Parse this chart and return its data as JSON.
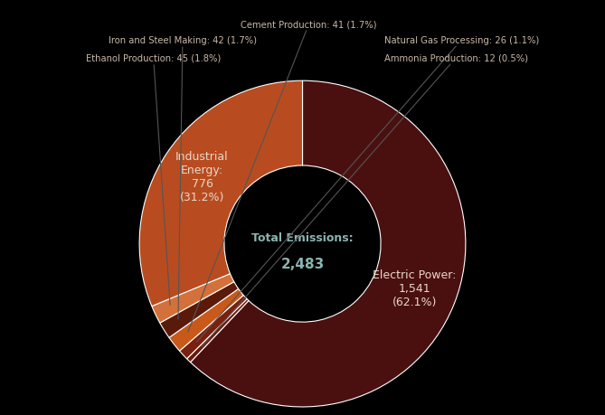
{
  "slices": [
    {
      "label": "Electric Power",
      "value": 1541,
      "pct": 62.1,
      "color": "#4a1010"
    },
    {
      "label": "Ammonia Production",
      "value": 12,
      "pct": 0.5,
      "color": "#6b1a0a"
    },
    {
      "label": "Natural Gas Processing",
      "value": 26,
      "pct": 1.1,
      "color": "#7a2010"
    },
    {
      "label": "Cement Production",
      "value": 41,
      "pct": 1.7,
      "color": "#c8591a"
    },
    {
      "label": "Iron and Steel Making",
      "value": 42,
      "pct": 1.7,
      "color": "#5a1a0a"
    },
    {
      "label": "Ethanol Production",
      "value": 45,
      "pct": 1.8,
      "color": "#d4703a"
    },
    {
      "label": "Industrial Energy",
      "value": 776,
      "pct": 31.2,
      "color": "#b84c20"
    }
  ],
  "total_text1": "Total Emissions:",
  "total_text2": "2,483",
  "background_color": "#000000",
  "center_text_color": "#8ab5b0",
  "wedge_edge_color": "#ffffff",
  "inner_label_color": "#e8d8c8",
  "ann_text_color": "#c8b8a8",
  "ann_line_color": "#555555",
  "ep_label": "Electric Power:\n1,541\n(62.1%)",
  "ie_label": "Industrial\nEnergy:\n776\n(31.2%)",
  "small_slices": [
    {
      "label": "Ethanol Production",
      "text": "Ethanol Production: 45 (1.8%)",
      "ha": "right"
    },
    {
      "label": "Iron and Steel Making",
      "text": "Iron and Steel Making: 42 (1.7%)",
      "ha": "right"
    },
    {
      "label": "Cement Production",
      "text": "Cement Production: 41 (1.7%)",
      "ha": "center"
    },
    {
      "label": "Natural Gas Processing",
      "text": "Natural Gas Processing: 26 (1.1%)",
      "ha": "left"
    },
    {
      "label": "Ammonia Production",
      "text": "Ammonia Production: 12 (0.5%)",
      "ha": "left"
    }
  ],
  "figsize": [
    6.69,
    4.6
  ],
  "dpi": 100
}
